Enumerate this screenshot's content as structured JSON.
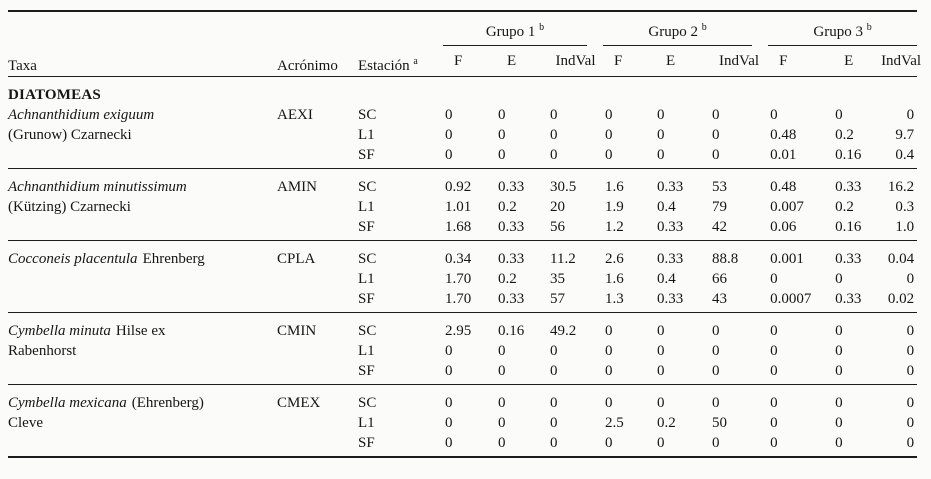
{
  "header": {
    "taxa": "Taxa",
    "acronimo": "Acrónimo",
    "estacion": "Estación",
    "estacion_sup": "a",
    "groups": [
      {
        "label": "Grupo 1",
        "sup": "b"
      },
      {
        "label": "Grupo 2",
        "sup": "b"
      },
      {
        "label": "Grupo 3",
        "sup": "b"
      }
    ],
    "sub": [
      "F",
      "E",
      "IndVal"
    ]
  },
  "section": "DIATOMEAS",
  "rows": [
    {
      "name_italic": "Achnanthidium exiguum",
      "name_roman": "",
      "line2": "(Grunow) Czarnecki",
      "acronym": "AEXI",
      "stations": [
        {
          "code": "SC",
          "values": [
            "0",
            "0",
            "0",
            "0",
            "0",
            "0",
            "0",
            "0",
            "0"
          ]
        },
        {
          "code": "L1",
          "values": [
            "0",
            "0",
            "0",
            "0",
            "0",
            "0",
            "0.48",
            "0.2",
            "9.7"
          ]
        },
        {
          "code": "SF",
          "values": [
            "0",
            "0",
            "0",
            "0",
            "0",
            "0",
            "0.01",
            "0.16",
            "0.4"
          ]
        }
      ]
    },
    {
      "name_italic": "Achnanthidium minutissimum",
      "name_roman": "",
      "line2": "(Kützing) Czarnecki",
      "acronym": "AMIN",
      "stations": [
        {
          "code": "SC",
          "values": [
            "0.92",
            "0.33",
            "30.5",
            "1.6",
            "0.33",
            "53",
            "0.48",
            "0.33",
            "16.2"
          ]
        },
        {
          "code": "L1",
          "values": [
            "1.01",
            "0.2",
            "20",
            "1.9",
            "0.4",
            "79",
            "0.007",
            "0.2",
            "0.3"
          ]
        },
        {
          "code": "SF",
          "values": [
            "1.68",
            "0.33",
            "56",
            "1.2",
            "0.33",
            "42",
            "0.06",
            "0.16",
            "1.0"
          ]
        }
      ]
    },
    {
      "name_italic": "Cocconeis placentula",
      "name_roman": "Ehrenberg",
      "line2": "",
      "acronym": "CPLA",
      "stations": [
        {
          "code": "SC",
          "values": [
            "0.34",
            "0.33",
            "11.2",
            "2.6",
            "0.33",
            "88.8",
            "0.001",
            "0.33",
            "0.04"
          ]
        },
        {
          "code": "L1",
          "values": [
            "1.70",
            "0.2",
            "35",
            "1.6",
            "0.4",
            "66",
            "0",
            "0",
            "0"
          ]
        },
        {
          "code": "SF",
          "values": [
            "1.70",
            "0.33",
            "57",
            "1.3",
            "0.33",
            "43",
            "0.0007",
            "0.33",
            "0.02"
          ]
        }
      ]
    },
    {
      "name_italic": "Cymbella minuta",
      "name_roman": "Hilse ex",
      "line2": "Rabenhorst",
      "acronym": "CMIN",
      "stations": [
        {
          "code": "SC",
          "values": [
            "2.95",
            "0.16",
            "49.2",
            "0",
            "0",
            "0",
            "0",
            "0",
            "0"
          ]
        },
        {
          "code": "L1",
          "values": [
            "0",
            "0",
            "0",
            "0",
            "0",
            "0",
            "0",
            "0",
            "0"
          ]
        },
        {
          "code": "SF",
          "values": [
            "0",
            "0",
            "0",
            "0",
            "0",
            "0",
            "0",
            "0",
            "0"
          ]
        }
      ]
    },
    {
      "name_italic": "Cymbella mexicana",
      "name_roman": "(Ehrenberg)",
      "line2": "Cleve",
      "acronym": "CMEX",
      "stations": [
        {
          "code": "SC",
          "values": [
            "0",
            "0",
            "0",
            "0",
            "0",
            "0",
            "0",
            "0",
            "0"
          ]
        },
        {
          "code": "L1",
          "values": [
            "0",
            "0",
            "0",
            "2.5",
            "0.2",
            "50",
            "0",
            "0",
            "0"
          ]
        },
        {
          "code": "SF",
          "values": [
            "0",
            "0",
            "0",
            "0",
            "0",
            "0",
            "0",
            "0",
            "0"
          ]
        }
      ]
    }
  ]
}
